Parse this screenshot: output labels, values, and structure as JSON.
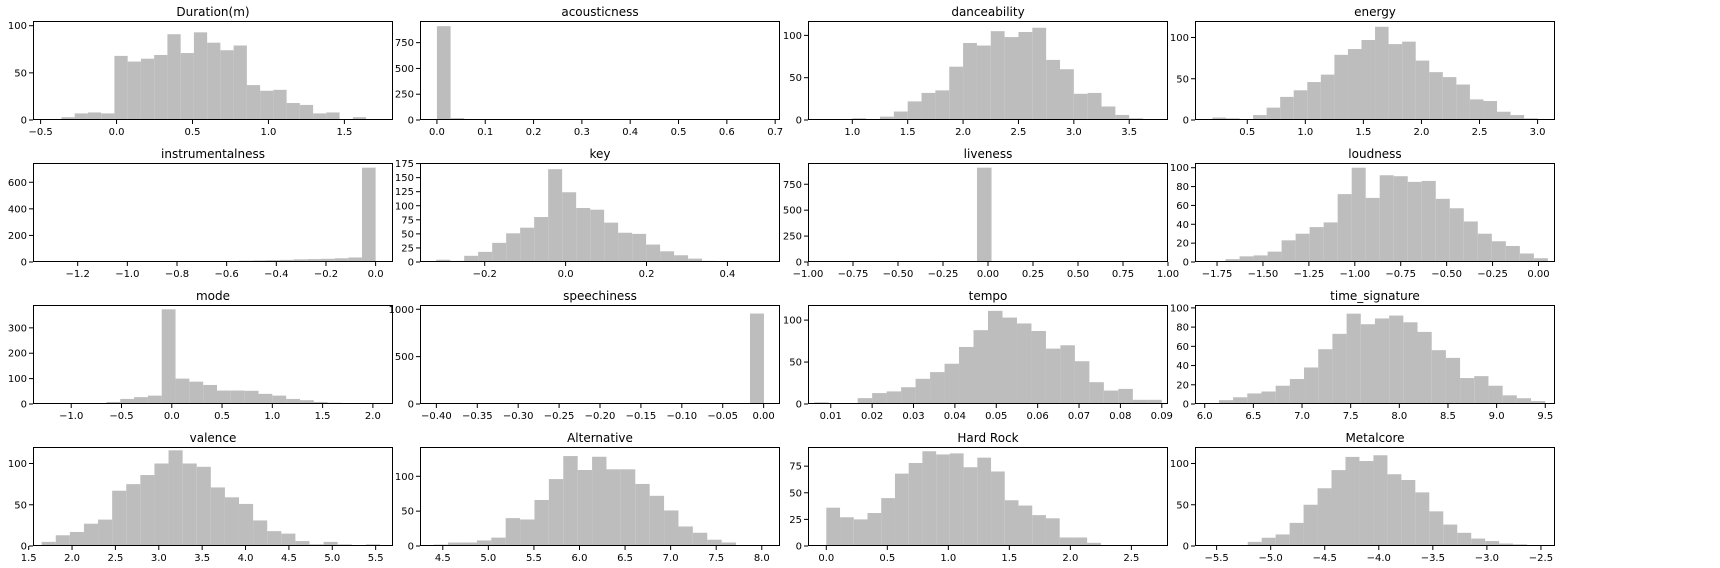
{
  "chart_data": [
    {
      "type": "bar",
      "title": "Duration(m)",
      "xlim": [
        -0.55,
        1.82
      ],
      "ylim": [
        0,
        105
      ],
      "xticks": [
        -0.5,
        0.0,
        0.5,
        1.0,
        1.5
      ],
      "xtick_labels": [
        "−0.5",
        "0.0",
        "0.5",
        "1.0",
        "1.5"
      ],
      "yticks": [
        0,
        50,
        100
      ],
      "ytick_labels": [
        "0",
        "50",
        "100"
      ],
      "bin_start": -0.45,
      "bin_width": 0.0872,
      "values": [
        1,
        3,
        7,
        8,
        7,
        68,
        62,
        65,
        69,
        91,
        71,
        93,
        82,
        74,
        79,
        37,
        31,
        32,
        18,
        16,
        7,
        8,
        0,
        3
      ]
    },
    {
      "type": "bar",
      "title": "acousticness",
      "xlim": [
        -0.035,
        0.71
      ],
      "ylim": [
        0,
        960
      ],
      "xticks": [
        0.0,
        0.1,
        0.2,
        0.3,
        0.4,
        0.5,
        0.6,
        0.7
      ],
      "xtick_labels": [
        "0.0",
        "0.1",
        "0.2",
        "0.3",
        "0.4",
        "0.5",
        "0.6",
        "0.7"
      ],
      "yticks": [
        0,
        250,
        500,
        750
      ],
      "ytick_labels": [
        "0",
        "250",
        "500",
        "750"
      ],
      "bin_start": 0.0,
      "bin_width": 0.0283,
      "values": [
        910,
        18,
        6,
        4,
        3,
        2,
        2,
        3,
        2,
        1,
        1,
        1,
        1,
        0,
        1,
        1,
        0,
        1,
        1,
        0,
        0,
        0,
        1,
        1
      ]
    },
    {
      "type": "bar",
      "title": "danceability",
      "xlim": [
        0.6,
        3.85
      ],
      "ylim": [
        0,
        117
      ],
      "xticks": [
        1.0,
        1.5,
        2.0,
        2.5,
        3.0,
        3.5
      ],
      "xtick_labels": [
        "1.0",
        "1.5",
        "2.0",
        "2.5",
        "3.0",
        "3.5"
      ],
      "yticks": [
        0,
        50,
        100
      ],
      "ytick_labels": [
        "0",
        "50",
        "100"
      ],
      "bin_start": 0.75,
      "bin_width": 0.125,
      "values": [
        1,
        0,
        2,
        1,
        4,
        10,
        22,
        32,
        35,
        63,
        91,
        88,
        105,
        98,
        104,
        109,
        71,
        60,
        31,
        32,
        16,
        6,
        2,
        1
      ]
    },
    {
      "type": "bar",
      "title": "energy",
      "xlim": [
        0.05,
        3.15
      ],
      "ylim": [
        0,
        120
      ],
      "xticks": [
        0.5,
        1.0,
        1.5,
        2.0,
        2.5,
        3.0
      ],
      "xtick_labels": [
        "0.5",
        "1.0",
        "1.5",
        "2.0",
        "2.5",
        "3.0"
      ],
      "yticks": [
        0,
        50,
        100
      ],
      "ytick_labels": [
        "0",
        "50",
        "100"
      ],
      "bin_start": 0.2,
      "bin_width": 0.1167,
      "values": [
        3,
        2,
        1,
        6,
        15,
        28,
        36,
        46,
        55,
        79,
        86,
        97,
        113,
        92,
        95,
        72,
        58,
        52,
        43,
        25,
        23,
        10,
        6,
        2
      ]
    },
    {
      "type": "bar",
      "title": "instrumentalness",
      "xlim": [
        -1.38,
        0.07
      ],
      "ylim": [
        0,
        745
      ],
      "xticks": [
        -1.2,
        -1.0,
        -0.8,
        -0.6,
        -0.4,
        -0.2,
        0.0
      ],
      "xtick_labels": [
        "−1.2",
        "−1.0",
        "−0.8",
        "−0.6",
        "−0.4",
        "−0.2",
        "0.0"
      ],
      "yticks": [
        0,
        200,
        400,
        600
      ],
      "ytick_labels": [
        "0",
        "200",
        "400",
        "600"
      ],
      "bin_start": -1.32,
      "bin_width": 0.055,
      "values": [
        1,
        0,
        0,
        0,
        0,
        1,
        1,
        2,
        3,
        2,
        4,
        5,
        6,
        7,
        10,
        12,
        14,
        16,
        20,
        22,
        24,
        28,
        34,
        710
      ]
    },
    {
      "type": "bar",
      "title": "key",
      "xlim": [
        -0.36,
        0.53
      ],
      "ylim": [
        0,
        176
      ],
      "xticks": [
        -0.2,
        0.0,
        0.2,
        0.4
      ],
      "xtick_labels": [
        "−0.2",
        "0.0",
        "0.2",
        "0.4"
      ],
      "yticks": [
        0,
        25,
        50,
        75,
        100,
        125,
        150,
        175
      ],
      "ytick_labels": [
        "0",
        "25",
        "50",
        "75",
        "100",
        "125",
        "150",
        "175"
      ],
      "bin_start": -0.32,
      "bin_width": 0.0346,
      "values": [
        4,
        2,
        11,
        18,
        34,
        51,
        61,
        80,
        165,
        124,
        96,
        93,
        70,
        52,
        50,
        31,
        19,
        12,
        6,
        2,
        1,
        1,
        0,
        1
      ]
    },
    {
      "type": "bar",
      "title": "liveness",
      "xlim": [
        -1.0,
        1.0
      ],
      "ylim": [
        0,
        955
      ],
      "xticks": [
        -1.0,
        -0.75,
        -0.5,
        -0.25,
        0.0,
        0.25,
        0.5,
        0.75,
        1.0
      ],
      "xtick_labels": [
        "−1.00",
        "−0.75",
        "−0.50",
        "−0.25",
        "0.00",
        "0.25",
        "0.50",
        "0.75",
        "1.00"
      ],
      "yticks": [
        0,
        250,
        500,
        750
      ],
      "ytick_labels": [
        "0",
        "250",
        "500",
        "750"
      ],
      "bin_start": -0.95,
      "bin_width": 0.0808,
      "values": [
        0,
        0,
        0,
        0,
        0,
        0,
        0,
        0,
        0,
        3,
        4,
        910,
        6,
        3,
        2,
        0,
        0,
        0,
        0,
        0,
        0,
        0,
        0,
        0
      ]
    },
    {
      "type": "bar",
      "title": "loudness",
      "xlim": [
        -1.87,
        0.09
      ],
      "ylim": [
        0,
        105
      ],
      "xticks": [
        -1.75,
        -1.5,
        -1.25,
        -1.0,
        -0.75,
        -0.5,
        -0.25,
        0.0
      ],
      "xtick_labels": [
        "−1.75",
        "−1.50",
        "−1.25",
        "−1.00",
        "−0.75",
        "−0.50",
        "−0.25",
        "0.00"
      ],
      "yticks": [
        0,
        20,
        40,
        60,
        80,
        100
      ],
      "ytick_labels": [
        "0",
        "20",
        "40",
        "60",
        "80",
        "100"
      ],
      "bin_start": -1.78,
      "bin_width": 0.0763,
      "values": [
        1,
        3,
        6,
        7,
        11,
        23,
        30,
        37,
        42,
        72,
        100,
        68,
        92,
        91,
        85,
        86,
        67,
        57,
        43,
        30,
        22,
        17,
        9,
        4
      ]
    },
    {
      "type": "bar",
      "title": "mode",
      "xlim": [
        -1.38,
        2.2
      ],
      "ylim": [
        0,
        390
      ],
      "xticks": [
        -1.0,
        -0.5,
        0.0,
        0.5,
        1.0,
        1.5,
        2.0
      ],
      "xtick_labels": [
        "−1.0",
        "−0.5",
        "0.0",
        "0.5",
        "1.0",
        "1.5",
        "2.0"
      ],
      "yticks": [
        0,
        100,
        200,
        300
      ],
      "ytick_labels": [
        "0",
        "100",
        "200",
        "300"
      ],
      "bin_start": -1.2,
      "bin_width": 0.1375,
      "values": [
        1,
        2,
        3,
        4,
        8,
        20,
        27,
        33,
        373,
        100,
        88,
        75,
        53,
        53,
        52,
        40,
        33,
        20,
        15,
        8,
        5,
        3,
        1,
        1
      ]
    },
    {
      "type": "bar",
      "title": "speechiness",
      "xlim": [
        -0.42,
        0.02
      ],
      "ylim": [
        0,
        1045
      ],
      "xticks": [
        -0.4,
        -0.35,
        -0.3,
        -0.25,
        -0.2,
        -0.15,
        -0.1,
        -0.05,
        0.0
      ],
      "xtick_labels": [
        "−0.40",
        "−0.35",
        "−0.30",
        "−0.25",
        "−0.20",
        "−0.15",
        "−0.10",
        "−0.05",
        "0.00"
      ],
      "yticks": [
        0,
        500,
        1000
      ],
      "ytick_labels": [
        "0",
        "500",
        "1000"
      ],
      "bin_start": -0.41,
      "bin_width": 0.0171,
      "values": [
        2,
        1,
        1,
        1,
        1,
        1,
        1,
        2,
        1,
        1,
        2,
        1,
        1,
        1,
        1,
        1,
        1,
        1,
        1,
        2,
        1,
        2,
        3,
        955
      ]
    },
    {
      "type": "bar",
      "title": "tempo",
      "xlim": [
        0.0045,
        0.0915
      ],
      "ylim": [
        0,
        118
      ],
      "xticks": [
        0.01,
        0.02,
        0.03,
        0.04,
        0.05,
        0.06,
        0.07,
        0.08,
        0.09
      ],
      "xtick_labels": [
        "0.01",
        "0.02",
        "0.03",
        "0.04",
        "0.05",
        "0.06",
        "0.07",
        "0.08",
        "0.09"
      ],
      "yticks": [
        0,
        50,
        100
      ],
      "ytick_labels": [
        "0",
        "50",
        "100"
      ],
      "bin_start": 0.006,
      "bin_width": 0.0035,
      "values": [
        2,
        1,
        0,
        7,
        13,
        15,
        20,
        30,
        38,
        48,
        68,
        88,
        111,
        103,
        96,
        87,
        66,
        70,
        51,
        26,
        16,
        18,
        5,
        5
      ]
    },
    {
      "type": "bar",
      "title": "time_signature",
      "xlim": [
        5.9,
        9.6
      ],
      "ylim": [
        0,
        103
      ],
      "xticks": [
        6.0,
        6.5,
        7.0,
        7.5,
        8.0,
        8.5,
        9.0,
        9.5
      ],
      "xtick_labels": [
        "6.0",
        "6.5",
        "7.0",
        "7.5",
        "8.0",
        "8.5",
        "9.0",
        "9.5"
      ],
      "yticks": [
        0,
        20,
        40,
        60,
        80,
        100
      ],
      "ytick_labels": [
        "0",
        "20",
        "40",
        "60",
        "80",
        "100"
      ],
      "bin_start": 6.0,
      "bin_width": 0.1458,
      "values": [
        1,
        4,
        7,
        11,
        13,
        19,
        26,
        38,
        57,
        73,
        94,
        83,
        89,
        92,
        85,
        75,
        56,
        48,
        27,
        29,
        19,
        9,
        6,
        3
      ]
    },
    {
      "type": "bar",
      "title": "valence",
      "xlim": [
        1.55,
        5.7
      ],
      "ylim": [
        0,
        120
      ],
      "xticks": [
        1.5,
        2.0,
        2.5,
        3.0,
        3.5,
        4.0,
        4.5,
        5.0,
        5.5
      ],
      "xtick_labels": [
        "1.5",
        "2.0",
        "2.5",
        "3.0",
        "3.5",
        "4.0",
        "4.5",
        "5.0",
        "5.5"
      ],
      "yticks": [
        0,
        50,
        100
      ],
      "ytick_labels": [
        "0",
        "50",
        "100"
      ],
      "bin_start": 1.65,
      "bin_width": 0.1625,
      "values": [
        5,
        13,
        17,
        27,
        32,
        67,
        75,
        86,
        100,
        116,
        100,
        96,
        71,
        59,
        51,
        31,
        18,
        15,
        6,
        2,
        5,
        2,
        1,
        2
      ]
    },
    {
      "type": "bar",
      "title": "Alternative",
      "xlim": [
        4.25,
        8.2
      ],
      "ylim": [
        0,
        142
      ],
      "xticks": [
        4.5,
        5.0,
        5.5,
        6.0,
        6.5,
        7.0,
        7.5,
        8.0
      ],
      "xtick_labels": [
        "4.5",
        "5.0",
        "5.5",
        "6.0",
        "6.5",
        "7.0",
        "7.5",
        "8.0"
      ],
      "yticks": [
        0,
        50,
        100
      ],
      "ytick_labels": [
        "0",
        "50",
        "100"
      ],
      "bin_start": 4.4,
      "bin_width": 0.158,
      "values": [
        2,
        5,
        5,
        8,
        12,
        40,
        38,
        66,
        96,
        129,
        109,
        128,
        110,
        110,
        89,
        72,
        51,
        28,
        19,
        9,
        5,
        1,
        1,
        1
      ]
    },
    {
      "type": "bar",
      "title": "Hard Rock",
      "xlim": [
        -0.15,
        2.8
      ],
      "ylim": [
        0,
        93
      ],
      "xticks": [
        0.0,
        0.5,
        1.0,
        1.5,
        2.0,
        2.5
      ],
      "xtick_labels": [
        "0.0",
        "0.5",
        "1.0",
        "1.5",
        "2.0",
        "2.5"
      ],
      "yticks": [
        0,
        25,
        50,
        75
      ],
      "ytick_labels": [
        "0",
        "25",
        "50",
        "75"
      ],
      "bin_start": 0.0,
      "bin_width": 0.1125,
      "values": [
        36,
        27,
        25,
        31,
        45,
        68,
        78,
        89,
        86,
        87,
        74,
        83,
        70,
        43,
        38,
        29,
        26,
        8,
        8,
        3,
        0,
        0,
        1,
        0
      ]
    },
    {
      "type": "bar",
      "title": "Metalcore",
      "xlim": [
        -5.7,
        -2.37
      ],
      "ylim": [
        0,
        120
      ],
      "xticks": [
        -5.5,
        -5.0,
        -4.5,
        -4.0,
        -3.5,
        -3.0,
        -2.5
      ],
      "xtick_labels": [
        "−5.5",
        "−5.0",
        "−4.5",
        "−4.0",
        "−3.5",
        "−3.0",
        "−2.5"
      ],
      "yticks": [
        0,
        50,
        100
      ],
      "ytick_labels": [
        "0",
        "50",
        "100"
      ],
      "bin_start": -5.6,
      "bin_width": 0.1292,
      "values": [
        1,
        1,
        1,
        5,
        10,
        14,
        28,
        50,
        70,
        92,
        108,
        103,
        110,
        87,
        80,
        65,
        42,
        26,
        16,
        9,
        6,
        3,
        2,
        1
      ]
    }
  ]
}
